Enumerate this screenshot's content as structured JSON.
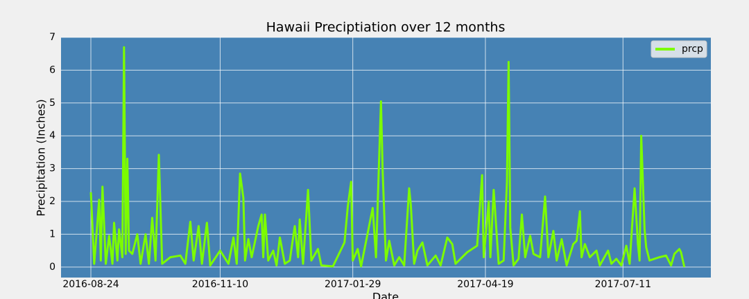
{
  "chart_data": {
    "type": "line",
    "title": "Hawaii Preciptiation over 12 months",
    "xlabel": "Date",
    "ylabel": "Precipitation (Inches)",
    "x": [
      "2016-08-24",
      "2016-08-26",
      "2016-08-29",
      "2016-08-30",
      "2016-08-31",
      "2016-09-02",
      "2016-09-04",
      "2016-09-06",
      "2016-09-07",
      "2016-09-09",
      "2016-09-10",
      "2016-09-12",
      "2016-09-13",
      "2016-09-14",
      "2016-09-15",
      "2016-09-16",
      "2016-09-18",
      "2016-09-21",
      "2016-09-23",
      "2016-09-26",
      "2016-09-28",
      "2016-09-30",
      "2016-10-02",
      "2016-10-04",
      "2016-10-06",
      "2016-10-11",
      "2016-10-17",
      "2016-10-20",
      "2016-10-23",
      "2016-10-25",
      "2016-10-28",
      "2016-10-30",
      "2016-11-02",
      "2016-11-04",
      "2016-11-10",
      "2016-11-15",
      "2016-11-18",
      "2016-11-20",
      "2016-11-22",
      "2016-11-24",
      "2016-11-25",
      "2016-11-27",
      "2016-11-29",
      "2016-12-03",
      "2016-12-05",
      "2016-12-06",
      "2016-12-07",
      "2016-12-09",
      "2016-12-12",
      "2016-12-14",
      "2016-12-16",
      "2016-12-19",
      "2016-12-22",
      "2016-12-25",
      "2016-12-27",
      "2016-12-28",
      "2016-12-30",
      "2017-01-02",
      "2017-01-04",
      "2017-01-08",
      "2017-01-10",
      "2017-01-17",
      "2017-01-24",
      "2017-01-26",
      "2017-01-28",
      "2017-01-29",
      "2017-02-01",
      "2017-02-03",
      "2017-02-10",
      "2017-02-12",
      "2017-02-15",
      "2017-02-16",
      "2017-02-18",
      "2017-02-20",
      "2017-02-23",
      "2017-02-26",
      "2017-03-01",
      "2017-03-04",
      "2017-03-05",
      "2017-03-07",
      "2017-03-09",
      "2017-03-12",
      "2017-03-15",
      "2017-03-20",
      "2017-03-23",
      "2017-03-27",
      "2017-03-30",
      "2017-04-01",
      "2017-04-08",
      "2017-04-14",
      "2017-04-17",
      "2017-04-18",
      "2017-04-21",
      "2017-04-22",
      "2017-04-24",
      "2017-04-25",
      "2017-04-27",
      "2017-04-30",
      "2017-05-02",
      "2017-05-03",
      "2017-05-04",
      "2017-05-06",
      "2017-05-09",
      "2017-05-11",
      "2017-05-13",
      "2017-05-16",
      "2017-05-18",
      "2017-05-22",
      "2017-05-25",
      "2017-05-27",
      "2017-05-30",
      "2017-06-01",
      "2017-06-04",
      "2017-06-07",
      "2017-06-11",
      "2017-06-13",
      "2017-06-15",
      "2017-06-16",
      "2017-06-18",
      "2017-06-21",
      "2017-06-25",
      "2017-06-27",
      "2017-07-02",
      "2017-07-04",
      "2017-07-07",
      "2017-07-10",
      "2017-07-13",
      "2017-07-15",
      "2017-07-18",
      "2017-07-20",
      "2017-07-21",
      "2017-07-22",
      "2017-07-24",
      "2017-07-25",
      "2017-07-27",
      "2017-08-02",
      "2017-08-06",
      "2017-08-09",
      "2017-08-11",
      "2017-08-14",
      "2017-08-15",
      "2017-08-17"
    ],
    "series": [
      {
        "name": "prcp",
        "color": "#7cfc00",
        "values": [
          2.28,
          0.1,
          2.05,
          0.2,
          2.45,
          0.1,
          0.95,
          0.1,
          1.35,
          0.2,
          1.15,
          0.3,
          6.7,
          0.4,
          3.3,
          0.5,
          0.4,
          1.0,
          0.1,
          1.0,
          0.1,
          1.5,
          0.2,
          3.42,
          0.1,
          0.3,
          0.35,
          0.1,
          1.38,
          0.2,
          1.25,
          0.1,
          1.35,
          0.05,
          0.5,
          0.1,
          0.9,
          0.1,
          2.85,
          2.1,
          0.2,
          0.85,
          0.3,
          1.25,
          1.6,
          0.3,
          1.6,
          0.2,
          0.5,
          0.05,
          0.9,
          0.1,
          0.2,
          1.25,
          0.3,
          1.45,
          0.1,
          2.35,
          0.2,
          0.55,
          0.05,
          0.02,
          0.75,
          1.85,
          2.6,
          0.2,
          0.55,
          0.02,
          1.8,
          0.3,
          5.05,
          2.95,
          0.2,
          0.8,
          0.05,
          0.3,
          0.05,
          2.4,
          1.9,
          0.1,
          0.5,
          0.75,
          0.05,
          0.35,
          0.05,
          0.9,
          0.7,
          0.1,
          0.45,
          0.65,
          2.8,
          0.3,
          2.0,
          0.3,
          2.35,
          1.6,
          0.1,
          0.2,
          2.6,
          6.25,
          1.2,
          0.05,
          0.25,
          1.6,
          0.3,
          0.95,
          0.4,
          0.3,
          2.15,
          0.3,
          1.1,
          0.2,
          0.85,
          0.05,
          0.7,
          0.8,
          1.7,
          0.3,
          0.7,
          0.3,
          0.5,
          0.05,
          0.5,
          0.1,
          0.25,
          0.05,
          0.65,
          0.1,
          2.4,
          0.7,
          0.2,
          4.0,
          1.15,
          0.6,
          0.2,
          0.3,
          0.35,
          0.05,
          0.4,
          0.55,
          0.45,
          0.0
        ]
      }
    ],
    "xlim": [
      "2016-08-06",
      "2017-09-02"
    ],
    "xticks": [
      "2016-08-24",
      "2016-11-10",
      "2017-01-29",
      "2017-04-19",
      "2017-07-11"
    ],
    "ylim": [
      -0.32,
      7
    ],
    "yticks": [
      0,
      1,
      2,
      3,
      4,
      5,
      6,
      7
    ],
    "grid": true,
    "legend": "upper right"
  }
}
